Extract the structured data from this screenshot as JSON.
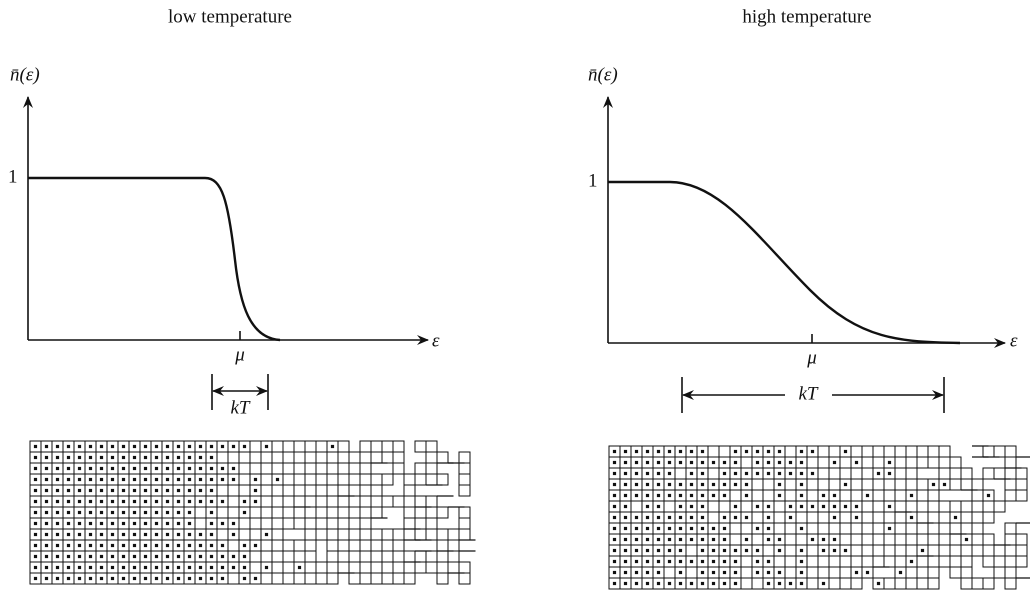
{
  "panels": [
    {
      "title": "low temperature",
      "y_label": "n̄(ε)",
      "y_tick": "1",
      "x_label": "ε",
      "mu_label": "μ",
      "width_label": "kT"
    },
    {
      "title": "high temperature",
      "y_label": "n̄(ε)",
      "y_tick": "1",
      "x_label": "ε",
      "mu_label": "μ",
      "width_label": "kT"
    }
  ]
}
